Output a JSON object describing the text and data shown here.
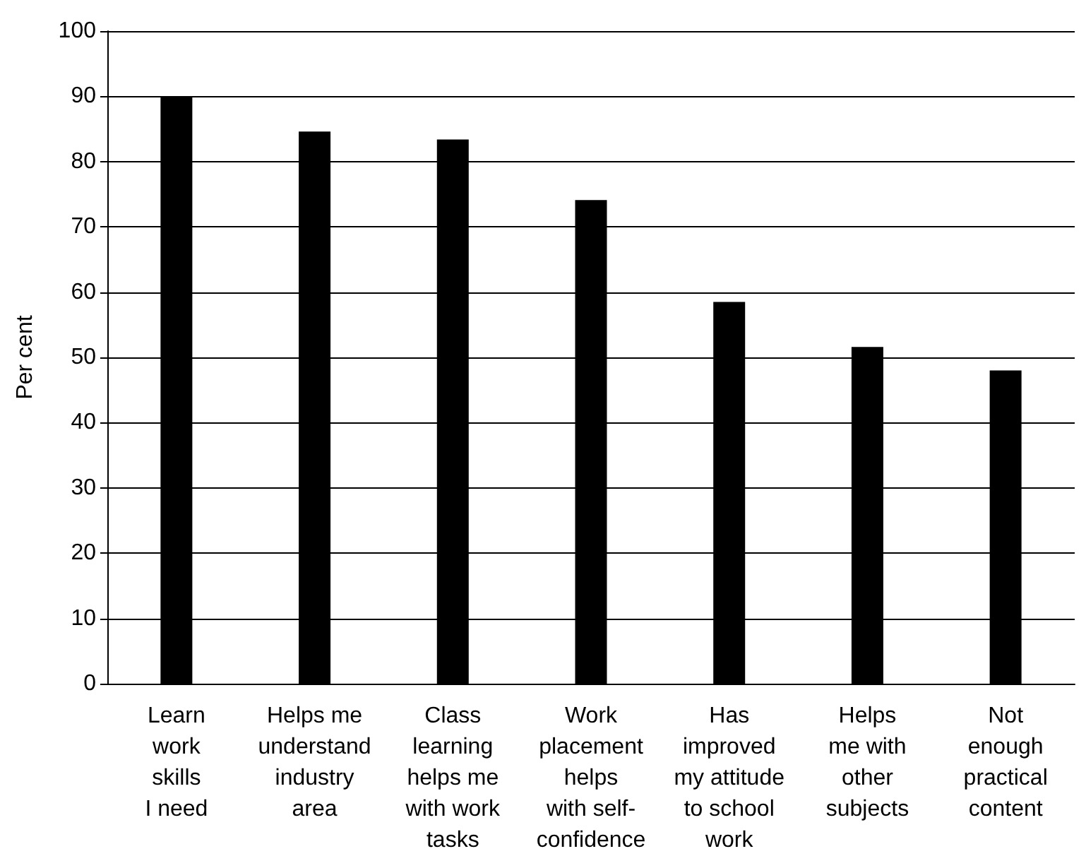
{
  "chart_data": {
    "type": "bar",
    "ylabel": "Per cent",
    "categories": [
      "Learn\nwork\nskills\nI need",
      "Helps me\nunderstand\nindustry\narea",
      "Class\nlearning\nhelps me\nwith work\ntasks",
      "Work\nplacement\nhelps\nwith self-\nconfidence",
      "Has\nimproved\nmy attitude\nto school\nwork",
      "Helps\nme with\nother\nsubjects",
      "Not\nenough\npractical\ncontent"
    ],
    "values": [
      90,
      84.6,
      83.4,
      74.1,
      58.5,
      51.6,
      48
    ],
    "color": "#000000",
    "ylim": [
      0,
      100
    ],
    "yticks": [
      0,
      10,
      20,
      30,
      40,
      50,
      60,
      70,
      80,
      90,
      100
    ],
    "grid": "y"
  }
}
